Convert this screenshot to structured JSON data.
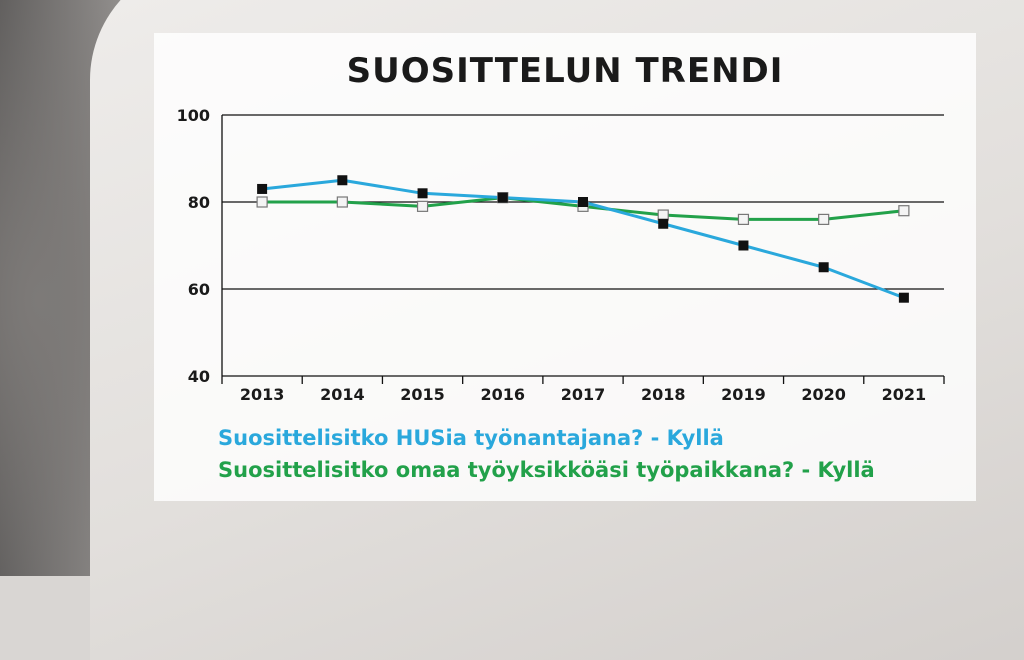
{
  "colors": {
    "series1": "#2aa8dc",
    "series2": "#22a14a",
    "text": "#1a1a1a"
  },
  "chart_data": {
    "type": "line",
    "title": "SUOSITTELUN TRENDI",
    "xlabel": "",
    "ylabel": "",
    "x": [
      "2013",
      "2014",
      "2015",
      "2016",
      "2017",
      "2018",
      "2019",
      "2020",
      "2021"
    ],
    "ylim": [
      40,
      100
    ],
    "yticks": [
      "100",
      "80",
      "60",
      "40"
    ],
    "grid": "horizontal",
    "legend_position": "bottom-left",
    "series": [
      {
        "name": "Suosittelisitko HUSia työnantajana? - Kyllä",
        "color": "#2aa8dc",
        "marker": "filled-square",
        "values": [
          83,
          85,
          82,
          81,
          80,
          75,
          70,
          65,
          58
        ]
      },
      {
        "name": "Suosittelisitko omaa työyksikköäsi työpaikkana? - Kyllä",
        "color": "#22a14a",
        "marker": "hollow-square",
        "values": [
          80,
          80,
          79,
          81,
          79,
          77,
          76,
          76,
          78
        ]
      }
    ]
  }
}
